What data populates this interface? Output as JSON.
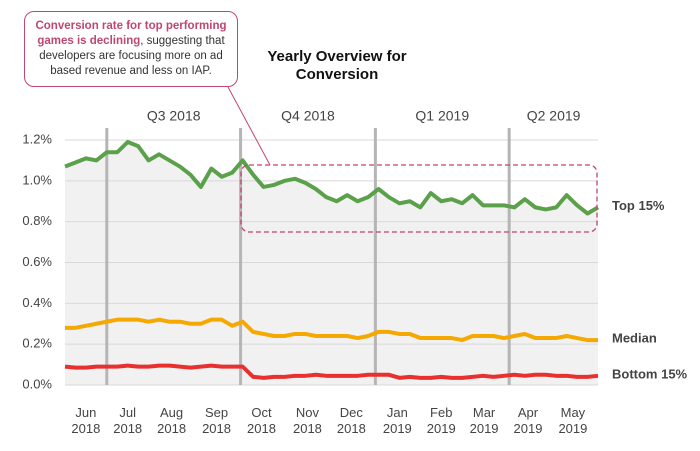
{
  "chart_data": {
    "type": "line",
    "title": "Yearly Overview for Conversion",
    "annotation": {
      "highlight": "Conversion rate for top performing games is declining",
      "text": ", suggesting that developers are focusing more on ad based revenue and less on IAP."
    },
    "x": [
      0,
      1,
      2,
      3,
      4,
      5,
      6,
      7,
      8,
      9,
      10,
      11,
      12,
      13,
      14,
      15,
      16,
      17,
      18,
      19,
      20,
      21,
      22,
      23,
      24,
      25,
      26,
      27,
      28,
      29,
      30,
      31,
      32,
      33,
      34,
      35,
      36,
      37,
      38,
      39,
      40,
      41,
      42,
      43,
      44,
      45,
      46,
      47,
      48,
      49,
      50,
      51
    ],
    "xlim": [
      0,
      51
    ],
    "xticks": [
      {
        "value": 2,
        "label": "Jun 2018"
      },
      {
        "value": 6,
        "label": "Jul 2018"
      },
      {
        "value": 10.2,
        "label": "Aug 2018"
      },
      {
        "value": 14.5,
        "label": "Sep 2018"
      },
      {
        "value": 18.8,
        "label": "Oct 2018"
      },
      {
        "value": 23.2,
        "label": "Nov 2018"
      },
      {
        "value": 27.4,
        "label": "Dec 2018"
      },
      {
        "value": 31.8,
        "label": "Jan 2019"
      },
      {
        "value": 36,
        "label": "Feb 2019"
      },
      {
        "value": 40.1,
        "label": "Mar 2019"
      },
      {
        "value": 44.3,
        "label": "Apr 2019"
      },
      {
        "value": 48.6,
        "label": "May 2019"
      }
    ],
    "quarters": [
      {
        "label": "Q3 2018",
        "start": 4
      },
      {
        "label": "Q4 2018",
        "start": 16.8
      },
      {
        "label": "Q1 2019",
        "start": 29.7
      },
      {
        "label": "Q2 2019",
        "start": 42.5
      }
    ],
    "ylim": [
      0,
      1.2
    ],
    "yticks": [
      {
        "value": 0,
        "label": "0.0%"
      },
      {
        "value": 0.2,
        "label": "0.2%"
      },
      {
        "value": 0.4,
        "label": "0.4%"
      },
      {
        "value": 0.6,
        "label": "0.6%"
      },
      {
        "value": 0.8,
        "label": "0.8%"
      },
      {
        "value": 1.0,
        "label": "1.0%"
      },
      {
        "value": 1.2,
        "label": "1.2%"
      }
    ],
    "grid": true,
    "series": [
      {
        "name": "Top 15%",
        "color": "#5ba04a",
        "values": [
          1.07,
          1.09,
          1.11,
          1.1,
          1.14,
          1.14,
          1.19,
          1.17,
          1.1,
          1.13,
          1.1,
          1.07,
          1.03,
          0.97,
          1.06,
          1.02,
          1.04,
          1.1,
          1.03,
          0.97,
          0.98,
          1.0,
          1.01,
          0.99,
          0.96,
          0.92,
          0.9,
          0.93,
          0.9,
          0.92,
          0.96,
          0.92,
          0.89,
          0.9,
          0.87,
          0.94,
          0.9,
          0.91,
          0.89,
          0.93,
          0.88,
          0.88,
          0.88,
          0.87,
          0.91,
          0.87,
          0.86,
          0.87,
          0.93,
          0.88,
          0.84,
          0.87
        ]
      },
      {
        "name": "Median",
        "color": "#f5a800",
        "values": [
          0.28,
          0.28,
          0.29,
          0.3,
          0.31,
          0.32,
          0.32,
          0.32,
          0.31,
          0.32,
          0.31,
          0.31,
          0.3,
          0.3,
          0.32,
          0.32,
          0.29,
          0.31,
          0.26,
          0.25,
          0.24,
          0.24,
          0.25,
          0.25,
          0.24,
          0.24,
          0.24,
          0.24,
          0.23,
          0.24,
          0.26,
          0.26,
          0.25,
          0.25,
          0.23,
          0.23,
          0.23,
          0.23,
          0.22,
          0.24,
          0.24,
          0.24,
          0.23,
          0.24,
          0.25,
          0.23,
          0.23,
          0.23,
          0.24,
          0.23,
          0.22,
          0.22
        ]
      },
      {
        "name": "Bottom 15%",
        "color": "#e8302f",
        "values": [
          0.09,
          0.085,
          0.085,
          0.09,
          0.09,
          0.09,
          0.095,
          0.09,
          0.09,
          0.095,
          0.095,
          0.09,
          0.085,
          0.09,
          0.095,
          0.09,
          0.09,
          0.09,
          0.04,
          0.035,
          0.04,
          0.04,
          0.045,
          0.045,
          0.05,
          0.045,
          0.045,
          0.045,
          0.045,
          0.05,
          0.05,
          0.05,
          0.035,
          0.04,
          0.035,
          0.035,
          0.04,
          0.035,
          0.035,
          0.04,
          0.045,
          0.04,
          0.045,
          0.05,
          0.045,
          0.05,
          0.05,
          0.045,
          0.045,
          0.04,
          0.04,
          0.045
        ]
      }
    ]
  }
}
